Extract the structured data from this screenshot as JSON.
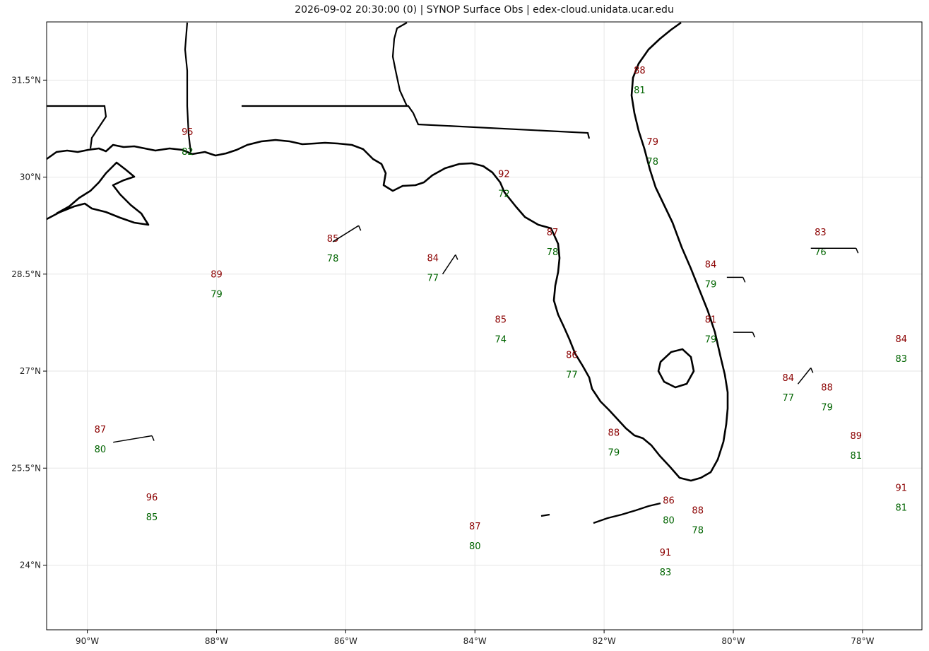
{
  "title": "2026-09-02 20:30:00 (0) | SYNOP Surface Obs | edex-cloud.unidata.ucar.edu",
  "colors": {
    "temp": "#8b0000",
    "dewpoint": "#006400",
    "coast": "#000000",
    "grid": "#e6e6e6"
  },
  "extent": {
    "lon": [
      -90.63,
      -77.08
    ],
    "lat": [
      23.0,
      32.4
    ]
  },
  "lon_ticks": [
    {
      "value": -90,
      "label": "90°W"
    },
    {
      "value": -88,
      "label": "88°W"
    },
    {
      "value": -86,
      "label": "86°W"
    },
    {
      "value": -84,
      "label": "84°W"
    },
    {
      "value": -82,
      "label": "82°W"
    },
    {
      "value": -80,
      "label": "80°W"
    },
    {
      "value": -78,
      "label": "78°W"
    }
  ],
  "lat_ticks": [
    {
      "value": 31.5,
      "label": "31.5°N"
    },
    {
      "value": 30,
      "label": "30°N"
    },
    {
      "value": 28.5,
      "label": "28.5°N"
    },
    {
      "value": 27,
      "label": "27°N"
    },
    {
      "value": 25.5,
      "label": "25.5°N"
    },
    {
      "value": 24,
      "label": "24°N"
    }
  ],
  "stations": [
    {
      "lon": -86.2,
      "lat": 29.0,
      "temp": "85",
      "dew": "78",
      "wind": [
        -86.2,
        29.0,
        -85.8,
        29.25
      ]
    },
    {
      "lon": -84.65,
      "lat": 28.7,
      "temp": "84",
      "dew": "77",
      "wind": [
        -84.5,
        28.5,
        -84.3,
        28.8
      ]
    },
    {
      "lon": -88.0,
      "lat": 28.45,
      "temp": "89",
      "dew": "79"
    },
    {
      "lon": -89.8,
      "lat": 26.05,
      "temp": "87",
      "dew": "80",
      "wind": [
        -89.6,
        25.9,
        -89.0,
        26.0
      ]
    },
    {
      "lon": -89.0,
      "lat": 25.0,
      "temp": "96",
      "dew": "85"
    },
    {
      "lon": -84.0,
      "lat": 24.55,
      "temp": "87",
      "dew": "80"
    },
    {
      "lon": -81.05,
      "lat": 24.15,
      "temp": "91",
      "dew": "83"
    },
    {
      "lon": -78.65,
      "lat": 29.1,
      "temp": "83",
      "dew": "76",
      "wind": [
        -78.8,
        28.9,
        -78.1,
        28.9
      ]
    },
    {
      "lon": -77.4,
      "lat": 27.45,
      "temp": "84",
      "dew": "83"
    },
    {
      "lon": -79.15,
      "lat": 26.85,
      "temp": "84",
      "dew": "77",
      "wind": [
        -79.0,
        26.8,
        -78.8,
        27.05
      ]
    },
    {
      "lon": -78.55,
      "lat": 26.7,
      "temp": "88",
      "dew": "79"
    },
    {
      "lon": -78.1,
      "lat": 25.95,
      "temp": "89",
      "dew": "81"
    },
    {
      "lon": -77.4,
      "lat": 25.15,
      "temp": "91",
      "dew": "81"
    },
    {
      "lon": -80.35,
      "lat": 28.6,
      "temp": "84",
      "dew": "79",
      "wind": [
        -80.1,
        28.45,
        -79.85,
        28.45
      ]
    },
    {
      "lon": -80.35,
      "lat": 27.75,
      "temp": "81",
      "dew": "79",
      "wind": [
        -80.0,
        27.6,
        -79.7,
        27.6
      ]
    },
    {
      "lon": -81.45,
      "lat": 31.6,
      "temp": "88",
      "dew": "81"
    },
    {
      "lon": -81.25,
      "lat": 30.5,
      "temp": "79",
      "dew": "78"
    },
    {
      "lon": -83.6,
      "lat": 27.75,
      "temp": "85",
      "dew": "74"
    },
    {
      "lon": -82.5,
      "lat": 27.2,
      "temp": "86",
      "dew": "77"
    },
    {
      "lon": -81.85,
      "lat": 26.0,
      "temp": "88",
      "dew": "79"
    },
    {
      "lon": -83.55,
      "lat": 30.0,
      "temp": "92",
      "dew": "72"
    },
    {
      "lon": -82.8,
      "lat": 29.1,
      "temp": "87",
      "dew": "78"
    },
    {
      "lon": -88.45,
      "lat": 30.65,
      "temp": "95",
      "dew": "82"
    },
    {
      "lon": -81.0,
      "lat": 24.95,
      "temp": "86",
      "dew": "80"
    },
    {
      "lon": -80.55,
      "lat": 24.8,
      "temp": "88",
      "dew": "78"
    }
  ]
}
